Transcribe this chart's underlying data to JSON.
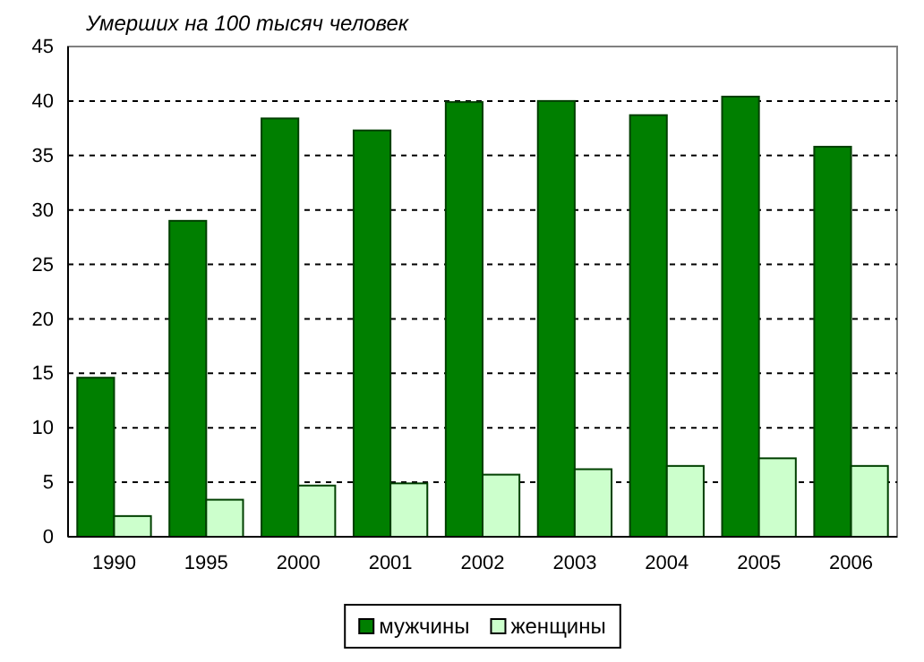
{
  "chart_data": {
    "type": "bar",
    "title": "Умерших на 100 тысяч человек",
    "categories": [
      "1990",
      "1995",
      "2000",
      "2001",
      "2002",
      "2003",
      "2004",
      "2005",
      "2006"
    ],
    "series": [
      {
        "name": "мужчины",
        "color": "#007f00",
        "values": [
          14.6,
          29.0,
          38.4,
          37.3,
          39.9,
          40.0,
          38.7,
          40.4,
          35.8
        ]
      },
      {
        "name": "женщины",
        "color": "#ccffcc",
        "values": [
          1.9,
          3.4,
          4.7,
          4.9,
          5.7,
          6.2,
          6.5,
          7.2,
          6.5
        ]
      }
    ],
    "ylim": [
      0,
      45
    ],
    "yticks": [
      0,
      5,
      10,
      15,
      20,
      25,
      30,
      35,
      40,
      45
    ],
    "grid": "y",
    "legend": "bottom"
  }
}
